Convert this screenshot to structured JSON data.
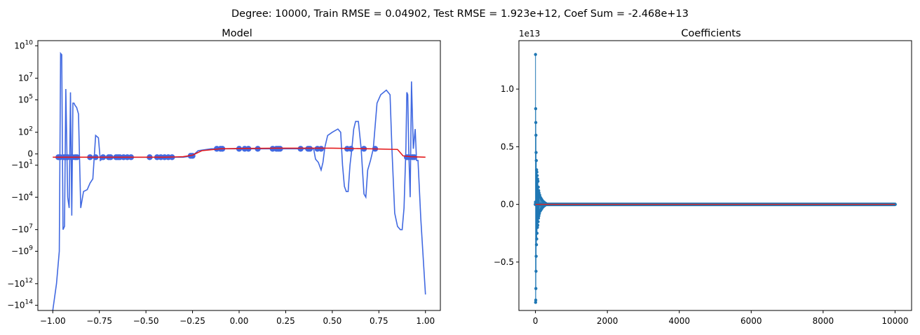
{
  "suptitle": "Degree: 10000, Train RMSE = 0.04902, Test RMSE = 1.923e+12, Coef Sum = -2.468e+13",
  "chart_data": [
    {
      "type": "line",
      "title": "Model",
      "xlim": [
        -1.08,
        1.08
      ],
      "ylim_symlog": [
        -300000000000000,
        30000000000
      ],
      "yscale": "symlog",
      "x_ticks": [
        -1.0,
        -0.75,
        -0.5,
        -0.25,
        0.0,
        0.25,
        0.5,
        0.75,
        1.0
      ],
      "x_tick_labels": [
        "−1.00",
        "−0.75",
        "−0.50",
        "−0.25",
        "0.00",
        "0.25",
        "0.50",
        "0.75",
        "1.00"
      ],
      "y_ticks": [
        10000000000,
        10000000,
        100000,
        100,
        0,
        -10,
        -10000,
        -10000000,
        -1000000000,
        -1000000000000,
        -100000000000000
      ],
      "y_tick_labels": [
        "10^10",
        "10^7",
        "10^5",
        "10^2",
        "0",
        "−10^1",
        "−10^4",
        "−10^7",
        "−10^9",
        "−10^12",
        "−10^14"
      ],
      "series": [
        {
          "kind": "line",
          "color": "#4169e1",
          "x": [
            -1.0,
            -0.98,
            -0.965,
            -0.958,
            -0.952,
            -0.945,
            -0.937,
            -0.93,
            -0.92,
            -0.912,
            -0.905,
            -0.898,
            -0.892,
            -0.886,
            -0.88,
            -0.872,
            -0.862,
            -0.85,
            -0.835,
            -0.815,
            -0.8,
            -0.785,
            -0.77,
            -0.755,
            -0.745,
            -0.735,
            -0.725,
            -0.7,
            -0.65,
            -0.6,
            -0.55,
            -0.5,
            -0.45,
            -0.4,
            -0.3,
            -0.25,
            -0.22,
            -0.15,
            -0.1,
            0.0,
            0.1,
            0.2,
            0.3,
            0.4,
            0.41,
            0.425,
            0.44,
            0.45,
            0.46,
            0.475,
            0.5,
            0.53,
            0.545,
            0.555,
            0.565,
            0.575,
            0.585,
            0.595,
            0.605,
            0.615,
            0.625,
            0.64,
            0.655,
            0.67,
            0.68,
            0.69,
            0.705,
            0.72,
            0.74,
            0.76,
            0.79,
            0.81,
            0.82,
            0.835,
            0.85,
            0.865,
            0.875,
            0.885,
            0.895,
            0.9,
            0.905,
            0.91,
            0.918,
            0.925,
            0.935,
            0.945,
            0.952,
            0.96,
            0.975,
            1.0
          ],
          "y": [
            -300000000000000,
            -1000000000000,
            -1000000000,
            2000000000,
            1500000000,
            -10000000,
            -5000000,
            1000000,
            -10000,
            -100000,
            500000,
            -500000,
            50000,
            50000,
            30000,
            20000,
            5000,
            -100000,
            -3000,
            -2000,
            -500,
            -200,
            50,
            30,
            -3,
            -2,
            -1,
            -1,
            -1,
            -1,
            -1,
            -1,
            -1,
            -1,
            -1,
            -0.5,
            1,
            2,
            2,
            2,
            2,
            2,
            2,
            2,
            -2,
            -5,
            -30,
            -5,
            3,
            50,
            100,
            200,
            100,
            -10,
            -1000,
            -3000,
            -3000,
            -10,
            2,
            200,
            1000,
            1000,
            2,
            -5000,
            -10000,
            -30,
            -3,
            2,
            50000,
            300000,
            800000,
            300000,
            2,
            -300000,
            -5000000,
            -10000000,
            -10000000,
            -100000,
            2,
            500000,
            300000,
            2,
            -10000,
            5000000,
            2,
            200,
            -3,
            -3,
            -1000000,
            -10000000000000
          ]
        },
        {
          "kind": "scatter",
          "color": "#4169e1",
          "x": [
            -0.97,
            -0.96,
            -0.94,
            -0.93,
            -0.92,
            -0.9,
            -0.895,
            -0.88,
            -0.87,
            -0.8,
            -0.77,
            -0.73,
            -0.7,
            -0.69,
            -0.66,
            -0.65,
            -0.64,
            -0.62,
            -0.6,
            -0.58,
            -0.48,
            -0.44,
            -0.42,
            -0.4,
            -0.38,
            -0.36,
            -0.26,
            -0.25,
            -0.12,
            -0.1,
            -0.09,
            0.0,
            0.03,
            0.05,
            0.1,
            0.18,
            0.2,
            0.21,
            0.22,
            0.33,
            0.37,
            0.38,
            0.42,
            0.44,
            0.58,
            0.6,
            0.67,
            0.73,
            0.9,
            0.91,
            0.93,
            0.94
          ],
          "y": [
            -1,
            -1,
            -1,
            -1,
            -1,
            -1,
            -1,
            -1,
            -1,
            -1,
            -1,
            -1,
            -1,
            -1,
            -1,
            -1,
            -1,
            -1,
            -1,
            -1,
            -1,
            -1,
            -1,
            -1,
            -1,
            -1,
            -0.5,
            -0.5,
            2,
            2,
            2,
            2,
            2,
            2,
            2,
            2,
            2,
            2,
            2,
            2,
            2,
            2,
            2,
            2,
            2,
            2,
            2,
            2,
            -1,
            -1,
            -1,
            -1
          ]
        },
        {
          "kind": "line",
          "color": "#e41a1c",
          "x": [
            -1.0,
            -0.8,
            -0.6,
            -0.4,
            -0.3,
            -0.25,
            -0.2,
            -0.1,
            0.0,
            0.2,
            0.5,
            0.7,
            0.85,
            0.88,
            0.92,
            1.0
          ],
          "y": [
            -1,
            -1,
            -1,
            -1,
            -0.8,
            -0.3,
            1,
            2,
            2.2,
            2.4,
            2.4,
            2,
            1.6,
            -0.5,
            -0.8,
            -1
          ]
        }
      ]
    },
    {
      "type": "line",
      "title": "Coefficients",
      "offset_label": "1e13",
      "xlim": [
        -460,
        10460
      ],
      "ylim": [
        -0.92,
        1.42
      ],
      "x_ticks": [
        0,
        2000,
        4000,
        6000,
        8000,
        10000
      ],
      "x_tick_labels": [
        "0",
        "2000",
        "4000",
        "6000",
        "8000",
        "10000"
      ],
      "y_ticks": [
        -0.5,
        0.0,
        0.5,
        1.0
      ],
      "y_tick_labels": [
        "−0.5",
        "0.0",
        "0.5",
        "1.0"
      ],
      "series": [
        {
          "kind": "stem",
          "color": "#1f77b4",
          "x": [
            0,
            2,
            4,
            6,
            8,
            10,
            12,
            14,
            16,
            18,
            20,
            24,
            28,
            32,
            36,
            40,
            45,
            50,
            55,
            60,
            65,
            70,
            75,
            80,
            85,
            90,
            95,
            100,
            110,
            120,
            130,
            140,
            150,
            160,
            170,
            180,
            190,
            200,
            220,
            240,
            260,
            280,
            300
          ],
          "y": [
            0.02,
            1.3,
            -0.85,
            0.83,
            -0.83,
            0.71,
            -0.73,
            0.6,
            -0.58,
            0.45,
            -0.45,
            0.38,
            -0.35,
            0.3,
            -0.3,
            0.28,
            -0.25,
            0.25,
            -0.2,
            0.22,
            -0.18,
            0.2,
            -0.15,
            0.15,
            -0.12,
            0.12,
            -0.1,
            0.1,
            -0.08,
            0.08,
            -0.06,
            0.06,
            -0.05,
            0.05,
            -0.04,
            0.04,
            -0.03,
            0.03,
            -0.02,
            0.02,
            -0.01,
            0.01,
            0.005
          ]
        },
        {
          "kind": "baseline",
          "color": "#d62728",
          "x": [
            0,
            10000
          ],
          "y": [
            0,
            0
          ]
        }
      ]
    }
  ]
}
